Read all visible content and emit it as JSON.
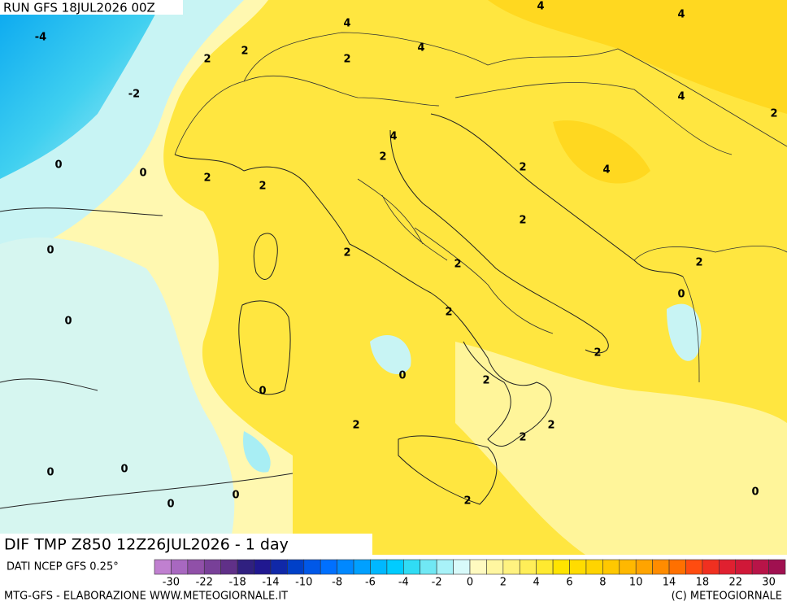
{
  "header": {
    "run": "RUN GFS 18JUL2026 00Z"
  },
  "map": {
    "field_title": "DIF TMP Z850 12Z26JUL2026 - 1 day",
    "contour_labels": [
      "4",
      "4",
      "-4",
      "4",
      "2",
      "2",
      "2",
      "4",
      "-2",
      "4",
      "2",
      "4",
      "2",
      "0",
      "0",
      "2",
      "2",
      "2",
      "4",
      "2",
      "0",
      "2",
      "2",
      "2",
      "0",
      "2",
      "0",
      "2",
      "0",
      "2",
      "0",
      "2",
      "2",
      "2",
      "0",
      "0",
      "2",
      "0",
      "0",
      "0"
    ]
  },
  "colorbar": {
    "colors": [
      "#c080d0",
      "#a868c0",
      "#9050a8",
      "#784098",
      "#603088",
      "#302080",
      "#201890",
      "#1028a8",
      "#0040c8",
      "#0058e8",
      "#0070ff",
      "#0088ff",
      "#00a0ff",
      "#00b8ff",
      "#00ccff",
      "#30dcf4",
      "#70e8f4",
      "#a8f2f8",
      "#d8fafa",
      "#fffac0",
      "#fff6a0",
      "#fff280",
      "#ffee58",
      "#ffea30",
      "#ffe400",
      "#ffdc00",
      "#ffd400",
      "#ffc800",
      "#ffb800",
      "#ffa400",
      "#ff8c00",
      "#ff7000",
      "#ff4c10",
      "#f03020",
      "#e02030",
      "#d01838",
      "#b81448",
      "#a01050"
    ],
    "tick_labels": [
      "-30",
      "-22",
      "-18",
      "-14",
      "-10",
      "-8",
      "-6",
      "-4",
      "-2",
      "0",
      "2",
      "4",
      "6",
      "8",
      "10",
      "14",
      "18",
      "22",
      "30"
    ]
  },
  "footer": {
    "source": "DATI NCEP GFS 0.25°",
    "credit": "MTG-GFS - ELABORAZIONE WWW.METEOGIORNALE.IT",
    "copyright": "(C) METEOGIORNALE"
  }
}
